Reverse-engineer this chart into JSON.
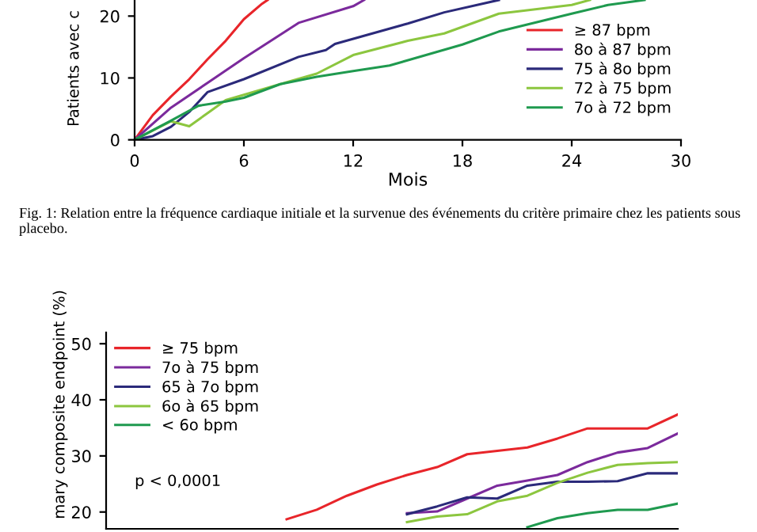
{
  "chart_data": [
    {
      "type": "line",
      "xlabel": "Mois",
      "ylabel": "Patients avec c",
      "xlim": [
        0,
        30
      ],
      "xticks": [
        0,
        6,
        12,
        18,
        24,
        30
      ],
      "ylim": [
        0,
        22.6
      ],
      "yticks": [
        0,
        10,
        20
      ],
      "grid": false,
      "legend": "right",
      "marker": "none",
      "line_style": "solid",
      "annotations": [
        "Fig. 1: Relation entre la fréquence cardiaque initiale et la survenue des événements du critère primaire chez les patients sous placebo."
      ],
      "series": [
        {
          "name": "≥ 87 bpm",
          "color": "#e8252a",
          "x": [
            0,
            1,
            2,
            3,
            4,
            5,
            6,
            7,
            7.3
          ],
          "values": [
            0,
            4,
            7,
            9.8,
            13,
            16,
            19.5,
            22,
            22.6
          ]
        },
        {
          "name": "8o à 87 bpm",
          "color": "#7b2a9c",
          "x": [
            0,
            2,
            4,
            6,
            9,
            12,
            12.6
          ],
          "values": [
            0,
            5.2,
            9.2,
            13.2,
            18.9,
            21.6,
            22.6
          ]
        },
        {
          "name": "75 à 8o bpm",
          "color": "#2b2a7a",
          "x": [
            0,
            1,
            2,
            3,
            4,
            6,
            9,
            10.5,
            11,
            15,
            17,
            20
          ],
          "values": [
            0,
            0.6,
            2.1,
            4.5,
            7.7,
            9.8,
            13.4,
            14.5,
            15.5,
            18.8,
            20.6,
            22.6
          ]
        },
        {
          "name": "72 à 75 bpm",
          "color": "#8cc63f",
          "x": [
            0,
            2,
            3,
            4,
            5,
            8,
            10,
            12,
            15,
            17,
            20,
            24,
            25
          ],
          "values": [
            0,
            3,
            2.2,
            4.3,
            6.4,
            9,
            10.7,
            13.7,
            16,
            17.2,
            20.4,
            21.8,
            22.6
          ]
        },
        {
          "name": "7o à 72 bpm",
          "color": "#1f9a4f",
          "x": [
            0,
            2,
            3.5,
            5,
            6,
            8,
            10,
            12,
            14,
            16,
            18,
            20,
            24,
            26,
            28
          ],
          "values": [
            0,
            3.1,
            5.5,
            6.2,
            6.8,
            9,
            10.2,
            11.1,
            12,
            13.7,
            15.4,
            17.5,
            20.4,
            21.8,
            22.6
          ]
        }
      ]
    },
    {
      "type": "line",
      "ylabel": "mary composite endpoint (%)",
      "ylim": [
        17,
        52
      ],
      "yticks": [
        20,
        30,
        40,
        50
      ],
      "grid": false,
      "legend": "top left",
      "marker": "none",
      "line_style": "solid",
      "tick_labels": "y",
      "annotations": [
        "p < 0,0001"
      ],
      "categories": [
        null,
        null,
        null,
        null,
        null,
        null,
        null,
        null,
        null,
        null,
        null,
        null,
        null,
        null,
        null,
        null,
        null,
        null,
        null,
        null
      ],
      "series": [
        {
          "name": "≥ 75 bpm",
          "color": "#e8252a",
          "values": [
            null,
            null,
            null,
            null,
            null,
            null,
            18.7,
            20.4,
            22.9,
            24.9,
            26.6,
            28.0,
            30.3,
            30.9,
            31.5,
            33.1,
            34.9,
            34.9,
            34.9,
            37.4
          ]
        },
        {
          "name": "7o à 75 bpm",
          "color": "#7b2a9c",
          "values": [
            null,
            null,
            null,
            null,
            null,
            null,
            null,
            null,
            null,
            null,
            19.8,
            20.1,
            22.4,
            24.7,
            25.6,
            26.6,
            28.9,
            30.6,
            31.4,
            34.0
          ]
        },
        {
          "name": "65 à 7o bpm",
          "color": "#2b2a7a",
          "values": [
            null,
            null,
            null,
            null,
            null,
            null,
            null,
            null,
            null,
            null,
            19.6,
            21.0,
            22.6,
            22.4,
            24.7,
            25.4,
            25.4,
            25.5,
            26.9,
            26.9
          ]
        },
        {
          "name": "6o à 65 bpm",
          "color": "#8cc63f",
          "values": [
            null,
            null,
            null,
            null,
            null,
            null,
            null,
            null,
            null,
            null,
            18.2,
            19.2,
            19.6,
            21.9,
            22.9,
            25.2,
            27.0,
            28.4,
            28.7,
            28.9
          ]
        },
        {
          "name": "< 6o bpm",
          "color": "#1f9a4f",
          "values": [
            null,
            null,
            null,
            null,
            null,
            null,
            null,
            null,
            null,
            null,
            null,
            null,
            null,
            null,
            17.3,
            18.9,
            19.8,
            20.4,
            20.4,
            21.5
          ]
        }
      ]
    }
  ]
}
